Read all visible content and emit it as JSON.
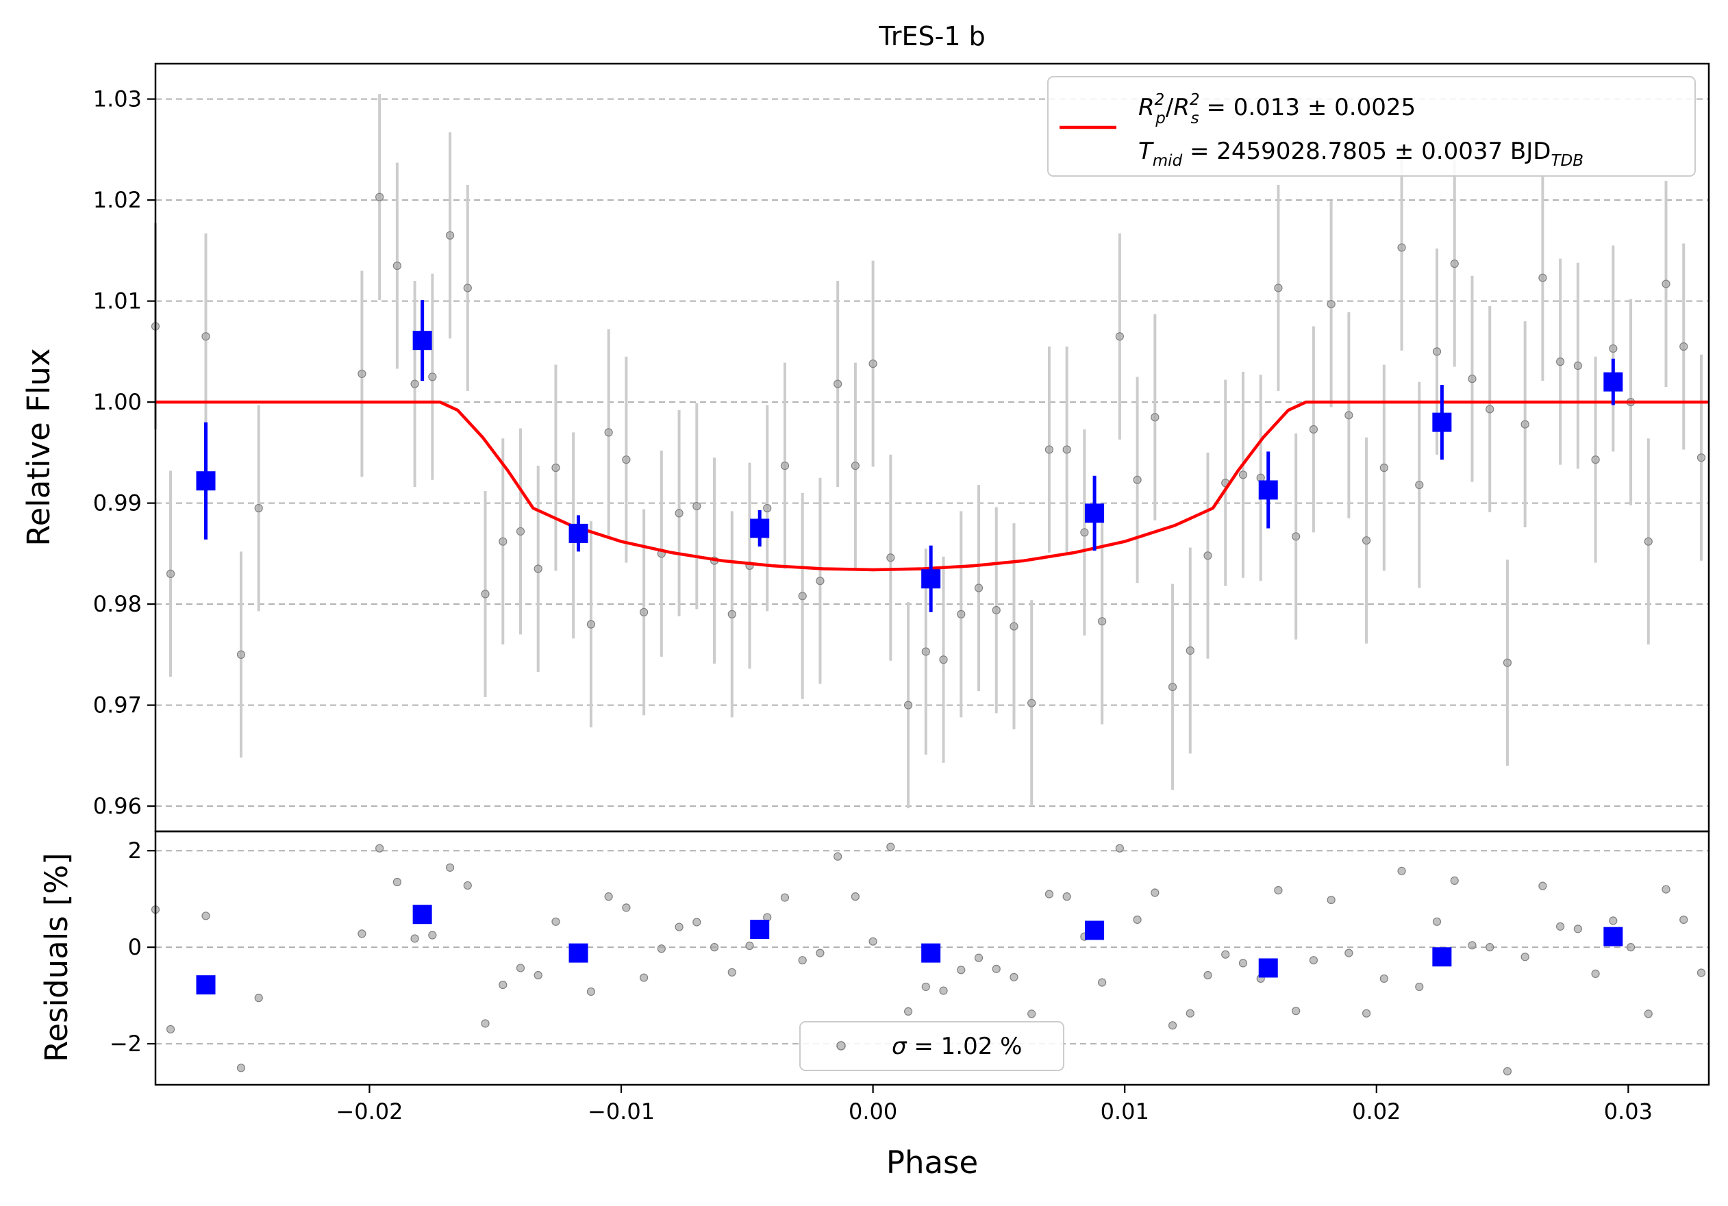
{
  "chart_data": {
    "type": "scatter",
    "title": "TrES-1 b",
    "xlabel": "Phase",
    "xlim": [
      -0.0285,
      0.0332
    ],
    "xticks": [
      -0.02,
      -0.01,
      0.0,
      0.01,
      0.02,
      0.03
    ],
    "xtick_labels": [
      "−0.02",
      "−0.01",
      "0.00",
      "0.01",
      "0.02",
      "0.03"
    ],
    "top_panel": {
      "ylabel": "Relative Flux",
      "ylim": [
        0.9575,
        1.0335
      ],
      "yticks": [
        0.96,
        0.97,
        0.98,
        0.99,
        1.0,
        1.01,
        1.02,
        1.03
      ],
      "ytick_labels": [
        "0.96",
        "0.97",
        "0.98",
        "0.99",
        "1.00",
        "1.01",
        "1.02",
        "1.03"
      ],
      "grid": "horizontal dashed",
      "legend_position": "top-right",
      "legend": {
        "line1": {
          "a": "R",
          "a_sub": "p",
          "a_sup": "2",
          "b": "R",
          "b_sub": "s",
          "b_sup": "2",
          "rest": " = 0.013 ± 0.0025"
        },
        "line2": {
          "a": "T",
          "a_sub": "mid",
          "rest": " = 2459028.7805 ± 0.0037 BJD",
          "unit_sub": "TDB"
        }
      },
      "model": {
        "color": "#ff0000",
        "phase": [
          -0.0285,
          -0.0172,
          -0.0165,
          -0.0155,
          -0.0145,
          -0.0135,
          -0.012,
          -0.01,
          -0.008,
          -0.006,
          -0.004,
          -0.002,
          0.0,
          0.002,
          0.004,
          0.006,
          0.008,
          0.01,
          0.012,
          0.0135,
          0.0145,
          0.0155,
          0.0165,
          0.0172,
          0.0332
        ],
        "flux": [
          1.0,
          1.0,
          0.9992,
          0.9965,
          0.9932,
          0.9895,
          0.9878,
          0.9862,
          0.9851,
          0.9843,
          0.9838,
          0.9835,
          0.9834,
          0.9835,
          0.9838,
          0.9843,
          0.9851,
          0.9862,
          0.9878,
          0.9895,
          0.9932,
          0.9965,
          0.9992,
          1.0,
          1.0
        ]
      },
      "points": {
        "color": "#a6a6a6",
        "error": 0.0102,
        "phase": [
          -0.0285,
          -0.0279,
          -0.0265,
          -0.0251,
          -0.0244,
          -0.0203,
          -0.0196,
          -0.0189,
          -0.0182,
          -0.0175,
          -0.0168,
          -0.0161,
          -0.0154,
          -0.0147,
          -0.014,
          -0.0133,
          -0.0126,
          -0.0119,
          -0.0112,
          -0.0105,
          -0.0098,
          -0.0091,
          -0.0084,
          -0.0077,
          -0.007,
          -0.0063,
          -0.0056,
          -0.0049,
          -0.0042,
          -0.0035,
          -0.0028,
          -0.0021,
          -0.0014,
          -0.0007,
          0.0,
          0.0007,
          0.0014,
          0.0021,
          0.0028,
          0.0035,
          0.0042,
          0.0049,
          0.0056,
          0.0063,
          0.007,
          0.0077,
          0.0084,
          0.0091,
          0.0098,
          0.0105,
          0.0112,
          0.0119,
          0.0126,
          0.0133,
          0.014,
          0.0147,
          0.0154,
          0.0161,
          0.0168,
          0.0175,
          0.0182,
          0.0189,
          0.0196,
          0.0203,
          0.021,
          0.0217,
          0.0224,
          0.0231,
          0.0238,
          0.0245,
          0.0252,
          0.0259,
          0.0266,
          0.0273,
          0.028,
          0.0287,
          0.0294,
          0.0301,
          0.0308,
          0.0315,
          0.0322,
          0.0329
        ],
        "flux": [
          1.0075,
          0.983,
          1.0065,
          0.975,
          0.9895,
          1.0028,
          1.0203,
          1.0135,
          1.0018,
          1.0025,
          1.0165,
          1.0113,
          0.981,
          0.9862,
          0.9872,
          0.9835,
          0.9935,
          0.9868,
          0.978,
          0.997,
          0.9943,
          0.9792,
          0.985,
          0.989,
          0.9897,
          0.9843,
          0.979,
          0.9838,
          0.9895,
          0.9937,
          0.9808,
          0.9823,
          1.0018,
          0.9937,
          1.0038,
          0.9846,
          0.97,
          0.9753,
          0.9745,
          0.979,
          0.9816,
          0.9794,
          0.9778,
          0.9702,
          0.9953,
          0.9953,
          0.9871,
          0.9783,
          1.0065,
          0.9923,
          0.9985,
          0.9718,
          0.9754,
          0.9848,
          0.992,
          0.9928,
          0.9925,
          1.0113,
          0.9867,
          0.9973,
          1.0097,
          0.9987,
          0.9863,
          0.9935,
          1.0153,
          0.9918,
          1.005,
          1.0137,
          1.0023,
          0.9993,
          0.9742,
          0.9978,
          1.0123,
          1.004,
          1.0036,
          0.9943,
          1.0053,
          1.0,
          0.9862,
          1.0117,
          1.0055,
          0.9945
        ]
      },
      "binned": {
        "color": "#0000ff",
        "phase": [
          -0.0265,
          -0.0179,
          -0.0117,
          -0.0045,
          0.0023,
          0.0088,
          0.0157,
          0.0226,
          0.0294
        ],
        "flux": [
          0.9922,
          1.0061,
          0.987,
          0.9875,
          0.9825,
          0.989,
          0.9913,
          0.998,
          1.002
        ],
        "error": [
          0.0058,
          0.004,
          0.0018,
          0.0018,
          0.0033,
          0.0037,
          0.0038,
          0.0037,
          0.0023
        ]
      }
    },
    "bottom_panel": {
      "ylabel": "Residuals [%]",
      "ylim": [
        -2.85,
        2.4
      ],
      "yticks": [
        -2,
        0,
        2
      ],
      "ytick_labels": [
        "−2",
        "0",
        "2"
      ],
      "grid": "horizontal dashed",
      "legend_position": "bottom-center",
      "legend": {
        "sigma": "σ",
        "text": " = 1.02 %"
      },
      "points": {
        "phase": [
          -0.0285,
          -0.0279,
          -0.0265,
          -0.0251,
          -0.0244,
          -0.0203,
          -0.0196,
          -0.0189,
          -0.0182,
          -0.0175,
          -0.0168,
          -0.0161,
          -0.0154,
          -0.0147,
          -0.014,
          -0.0133,
          -0.0126,
          -0.0119,
          -0.0112,
          -0.0105,
          -0.0098,
          -0.0091,
          -0.0084,
          -0.0077,
          -0.007,
          -0.0063,
          -0.0056,
          -0.0049,
          -0.0042,
          -0.0035,
          -0.0028,
          -0.0021,
          -0.0014,
          -0.0007,
          0.0,
          0.0007,
          0.0014,
          0.0021,
          0.0028,
          0.0035,
          0.0042,
          0.0049,
          0.0056,
          0.0063,
          0.007,
          0.0077,
          0.0084,
          0.0091,
          0.0098,
          0.0105,
          0.0112,
          0.0119,
          0.0126,
          0.0133,
          0.014,
          0.0147,
          0.0154,
          0.0161,
          0.0168,
          0.0175,
          0.0182,
          0.0189,
          0.0196,
          0.0203,
          0.021,
          0.0217,
          0.0224,
          0.0231,
          0.0238,
          0.0245,
          0.0252,
          0.0259,
          0.0266,
          0.0273,
          0.028,
          0.0287,
          0.0294,
          0.0301,
          0.0308,
          0.0315,
          0.0322,
          0.0329
        ],
        "residual": [
          0.78,
          -1.7,
          0.65,
          -2.5,
          -1.05,
          0.28,
          2.05,
          1.35,
          0.18,
          0.25,
          1.65,
          1.28,
          -1.58,
          -0.78,
          -0.43,
          -0.58,
          0.53,
          -0.08,
          -0.92,
          1.05,
          0.82,
          -0.63,
          -0.03,
          0.42,
          0.52,
          0.0,
          -0.52,
          0.03,
          0.62,
          1.03,
          -0.27,
          -0.12,
          1.88,
          1.05,
          0.12,
          2.08,
          -1.33,
          -0.82,
          -0.9,
          -0.47,
          -0.22,
          -0.45,
          -0.62,
          -1.38,
          1.1,
          1.05,
          0.22,
          -0.73,
          2.05,
          0.57,
          1.13,
          -1.62,
          -1.37,
          -0.58,
          -0.15,
          -0.33,
          -0.65,
          1.18,
          -1.32,
          -0.27,
          0.98,
          -0.12,
          -1.37,
          -0.65,
          1.58,
          -0.82,
          0.53,
          1.38,
          0.04,
          0.0,
          -2.57,
          -0.2,
          1.27,
          0.43,
          0.38,
          -0.55,
          0.55,
          0.0,
          -1.38,
          1.2,
          0.57,
          -0.53
        ]
      },
      "binned": {
        "phase": [
          -0.0265,
          -0.0179,
          -0.0117,
          -0.0045,
          0.0023,
          0.0088,
          0.0157,
          0.0226,
          0.0294
        ],
        "residual": [
          -0.78,
          0.68,
          -0.12,
          0.37,
          -0.12,
          0.35,
          -0.43,
          -0.2,
          0.22
        ]
      }
    }
  }
}
